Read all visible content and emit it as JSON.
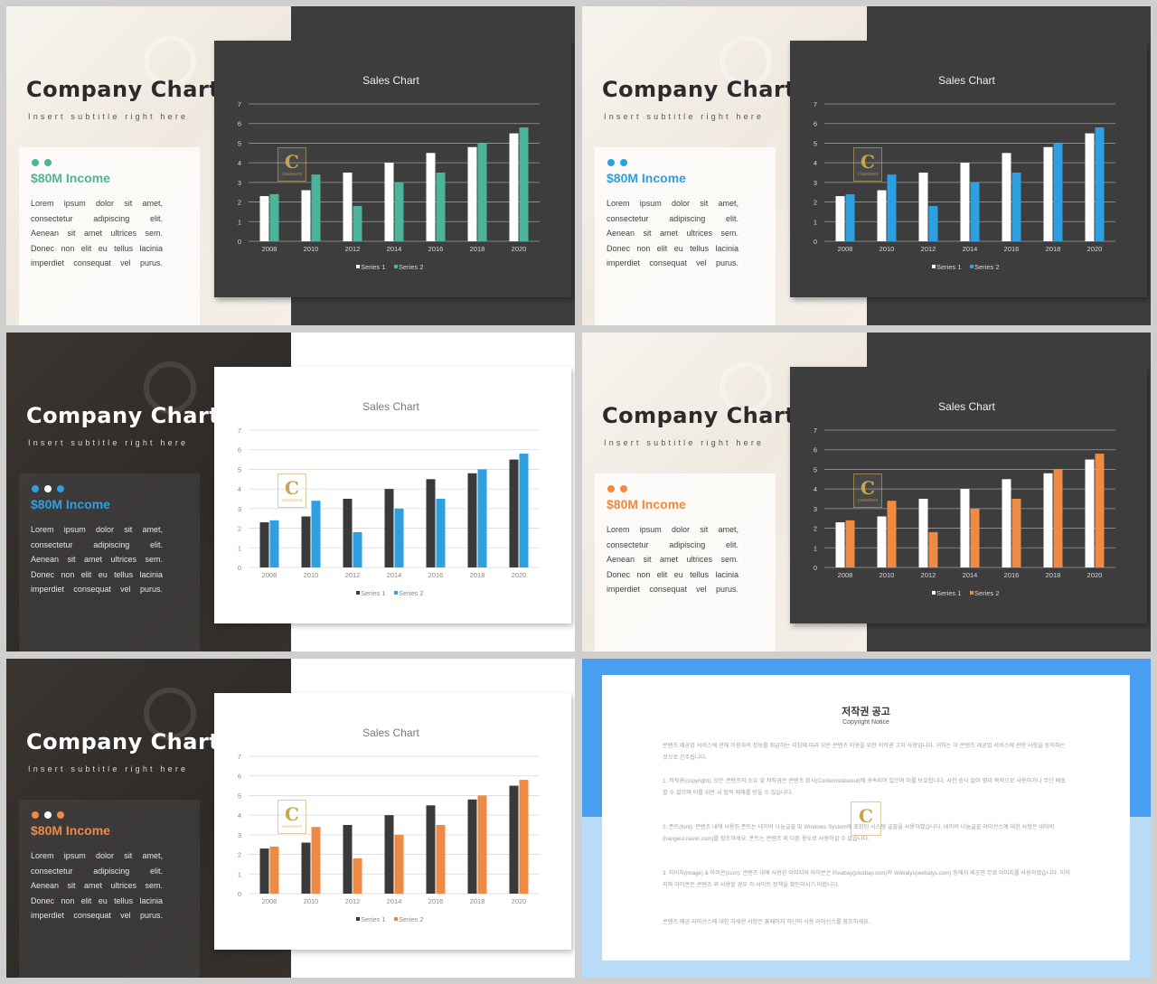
{
  "slides": [
    {
      "variant": "light-dark",
      "accent": "#4bb59c",
      "series1_color": "#ffffff",
      "dots": 2
    },
    {
      "variant": "light-dark",
      "accent": "#2e9fe0",
      "series1_color": "#ffffff",
      "dots": 2
    },
    {
      "variant": "dark-white",
      "accent": "#2e9fe0",
      "series1_color": "#3a3a3a",
      "dots": 3
    },
    {
      "variant": "light-dark",
      "accent": "#ee8a43",
      "series1_color": "#ffffff",
      "dots": 2
    },
    {
      "variant": "dark-white",
      "accent": "#ee8a43",
      "series1_color": "#3a3a3a",
      "dots": 3
    }
  ],
  "common": {
    "title": "Company Chart",
    "subtitle": "Insert subtitle right here",
    "income": "$80M Income",
    "body_lines": [
      "Lorem ipsum dolor sit amet,",
      "consectetur adipiscing elit.",
      "Aenean sit amet ultrices sem.",
      "Donec non elit eu tellus lacinia",
      "imperdiet consequat vel purus."
    ],
    "logo_letter": "C",
    "logo_subtext": "CONTENTS"
  },
  "chart_data": {
    "type": "bar",
    "title": "Sales Chart",
    "categories": [
      "2008",
      "2010",
      "2012",
      "2014",
      "2016",
      "2018",
      "2020"
    ],
    "series": [
      {
        "name": "Series 1",
        "values": [
          2.3,
          2.6,
          3.5,
          4.0,
          4.5,
          4.8,
          5.5
        ]
      },
      {
        "name": "Series 2",
        "values": [
          2.4,
          3.4,
          1.8,
          3.0,
          3.5,
          5.0,
          5.8
        ]
      }
    ],
    "yticks": [
      "0",
      "1",
      "2",
      "3",
      "4",
      "5",
      "6",
      "7"
    ],
    "ylim": [
      0,
      7
    ],
    "legend_position": "bottom"
  },
  "copyright": {
    "title": "저작권 공고",
    "subtitle": "Copyright Notice",
    "paragraphs": [
      "콘텐츠 제공업 서비스에 관해 이용자의 정보를 취급하는 지침에 따라 모든 콘텐츠 이용을 위한 저작권 고지 사항입니다. 귀하는 이 콘텐츠 제공업 서비스에 관한 사항을 동의하는 것으로 간주됩니다.",
      "1. 저작권(copyright): 모든 콘텐츠의 소유 및 저작권은 콘텐츠 회사(Contentstakeout)에 귀속되어 있으며 이를 보호합니다. 사전 승낙 없이 영리 목적으로 사용하거나 무단 배포 할 수 없으며 이를 위반 시 법적 제재를 받을 수 있습니다.",
      "2. 폰트(font): 콘텐츠 내에 사용된 폰트는 네이버 나눔글꼴 및 Windows System에 포함된 시스템 글꼴을 사용하였습니다. 네이버 나눔글꼴 라이선스에 대한 사항은 네이버(hangeul.naver.com)를 참조하세요. 폰트는 콘텐츠 외 다른 용도로 사용하실 수 없습니다.",
      "3. 이미지(image) & 아이콘(icon): 콘텐츠 내에 사용된 이미지와 아이콘은 Pixabay(pixabay.com)와 Webalys(webalys.com) 등에서 제공한 무료 이미지를 사용하였습니다. 이미지와 아이콘은 콘텐츠 외 사용할 경우 각 사이트 정책을 확인하시기 바랍니다.",
      "콘텐츠 제공 라이선스에 대한 자세한 사항은 홈페이지 하단의 사용 라이선스를 참조하세요."
    ],
    "logo_letter": "C",
    "colors": {
      "top": "#4a9ef0",
      "bottom": "#b8dcf8"
    }
  }
}
